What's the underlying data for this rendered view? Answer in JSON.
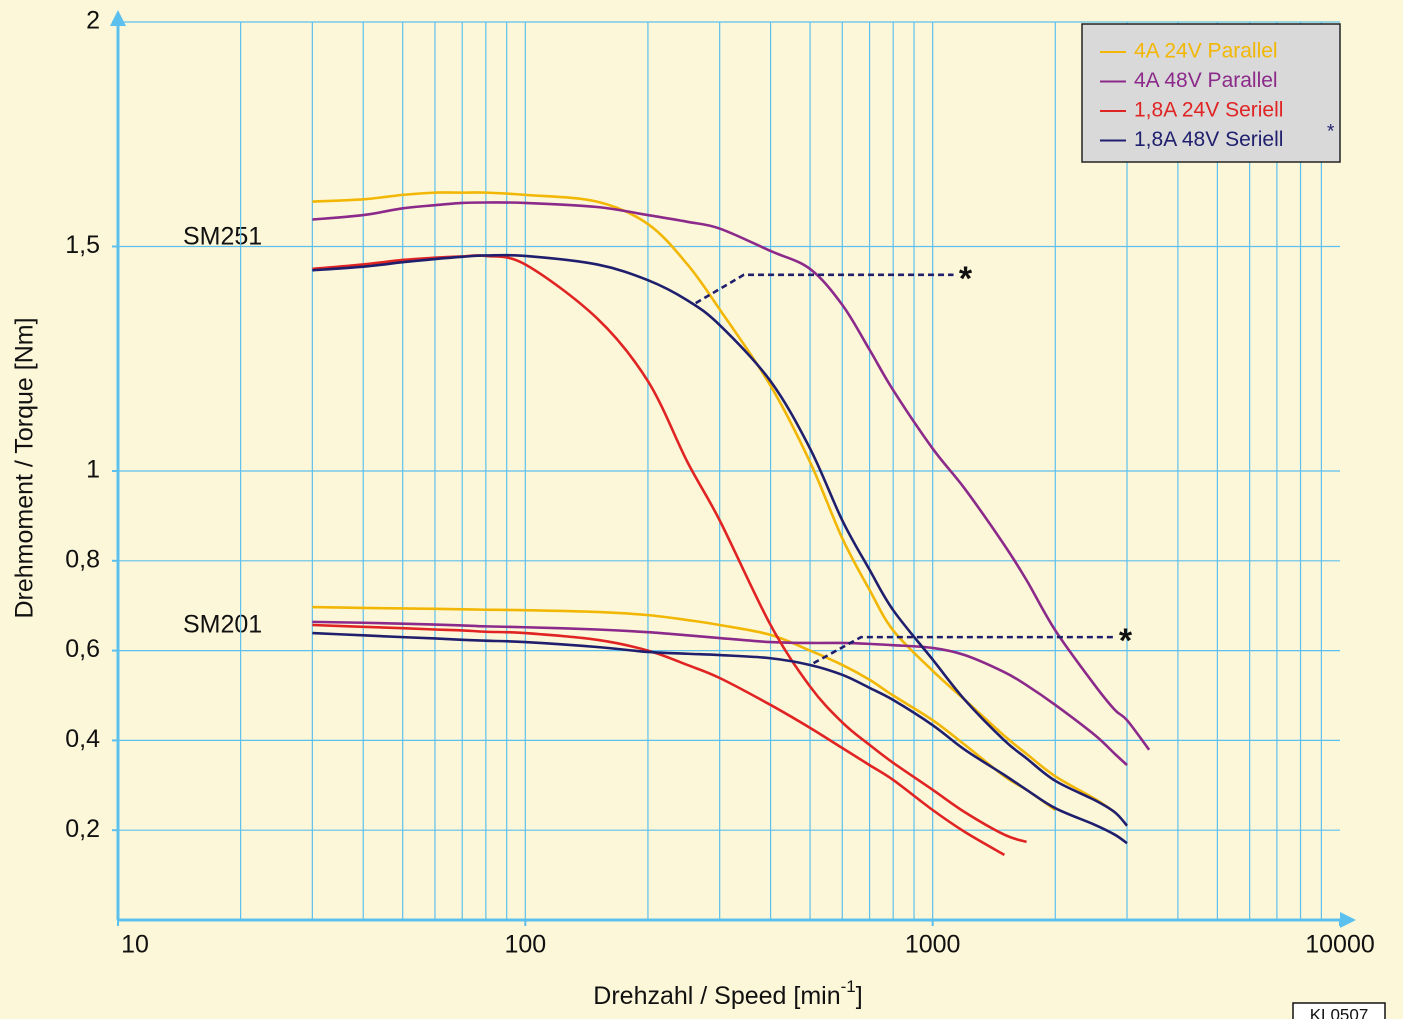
{
  "chart_data": {
    "type": "line",
    "ylabel": "Drehmoment / Torque [Nm]",
    "xlabel": "Drehzahl / Speed [min",
    "xlabel_sup": "-1",
    "xlabel_end": "]",
    "code": "KL0507",
    "xscale": "log",
    "grid": true,
    "legend_position": "upper right",
    "xlim": [
      10,
      10000
    ],
    "ylim": [
      0,
      2
    ],
    "xticks": [
      10,
      100,
      1000,
      10000
    ],
    "xgrid": [
      20,
      30,
      40,
      50,
      60,
      70,
      80,
      90,
      100,
      200,
      300,
      400,
      500,
      600,
      700,
      800,
      900,
      1000,
      2000,
      3000,
      4000,
      5000,
      6000,
      7000,
      8000,
      9000
    ],
    "yticks": [
      {
        "value": 0.2,
        "label": "0,2"
      },
      {
        "value": 0.4,
        "label": "0,4"
      },
      {
        "value": 0.6,
        "label": "0,6"
      },
      {
        "value": 0.8,
        "label": "0,8"
      },
      1,
      {
        "value": 1.5,
        "label": "1,5"
      },
      2
    ],
    "motors": [
      "SM251",
      "SM201"
    ],
    "x": [
      30,
      40,
      50,
      60,
      70,
      80,
      100,
      150,
      200,
      250,
      300,
      400,
      500,
      600,
      700,
      800,
      1000,
      1200,
      1500,
      1700,
      2000,
      2500,
      2800,
      3000,
      3400
    ],
    "series": [
      {
        "name": "4A 24V Parallel",
        "color": "#f2b705",
        "values": [
          [
            1.6,
            1.605,
            1.615,
            1.62,
            1.62,
            1.62,
            1.615,
            1.6,
            1.55,
            1.46,
            1.36,
            1.19,
            1.02,
            0.85,
            0.735,
            0.645,
            0.555,
            0.49,
            0.41,
            0.37,
            0.32,
            0.27,
            0.24,
            null,
            null
          ],
          [
            0.697,
            0.695,
            0.694,
            0.693,
            0.692,
            0.691,
            0.69,
            0.686,
            0.679,
            0.668,
            0.657,
            0.635,
            0.6,
            0.568,
            0.535,
            0.5,
            0.445,
            0.39,
            0.32,
            0.29,
            0.245,
            null,
            null,
            null,
            null
          ]
        ]
      },
      {
        "name": "4A 48V Parallel",
        "color": "#8b2a8a",
        "values": [
          [
            1.56,
            1.57,
            1.585,
            1.592,
            1.597,
            1.598,
            1.597,
            1.588,
            1.57,
            1.555,
            1.54,
            1.49,
            1.45,
            1.37,
            1.27,
            1.18,
            1.05,
            0.96,
            0.835,
            0.757,
            0.645,
            0.523,
            0.468,
            0.445,
            0.379
          ],
          [
            0.664,
            0.662,
            0.66,
            0.658,
            0.656,
            0.654,
            0.652,
            0.647,
            0.641,
            0.634,
            0.628,
            0.619,
            0.617,
            0.617,
            0.615,
            0.612,
            0.606,
            0.59,
            0.552,
            0.523,
            0.479,
            0.412,
            0.37,
            0.345,
            null
          ]
        ]
      },
      {
        "name": "1,8A 24V Seriell",
        "color": "#e02424",
        "values": [
          [
            1.45,
            1.46,
            1.47,
            1.475,
            1.478,
            1.479,
            1.46,
            1.34,
            1.2,
            1.02,
            0.89,
            0.657,
            0.52,
            0.44,
            0.39,
            0.35,
            0.29,
            0.24,
            0.19,
            0.174,
            null,
            null,
            null,
            null,
            null
          ],
          [
            0.657,
            0.653,
            0.65,
            0.647,
            0.645,
            0.642,
            0.639,
            0.624,
            0.6,
            0.568,
            0.539,
            0.479,
            0.428,
            0.383,
            0.345,
            0.312,
            0.245,
            0.196,
            0.145,
            null,
            null,
            null,
            null,
            null,
            null
          ]
        ]
      },
      {
        "name": "1,8A 48V Seriell",
        "name_suffix": "*",
        "color": "#1f1f6e",
        "values": [
          [
            1.447,
            1.455,
            1.465,
            1.472,
            1.477,
            1.48,
            1.479,
            1.46,
            1.425,
            1.38,
            1.325,
            1.2,
            1.05,
            0.89,
            0.78,
            0.69,
            0.58,
            0.49,
            0.4,
            0.36,
            0.31,
            0.267,
            0.24,
            0.21,
            null
          ],
          [
            0.639,
            0.634,
            0.63,
            0.627,
            0.624,
            0.622,
            0.619,
            0.608,
            0.597,
            0.593,
            0.59,
            0.583,
            0.568,
            0.546,
            0.517,
            0.49,
            0.434,
            0.379,
            0.323,
            0.29,
            0.249,
            0.212,
            0.19,
            0.171,
            null
          ]
        ]
      }
    ],
    "annotations": [
      {
        "text": "*",
        "color": "#1f1f6e",
        "x": [
          262,
          344,
          1125
        ],
        "y": [
          1.374,
          1.437,
          1.437
        ]
      },
      {
        "text": "*",
        "color": "#1f1f6e",
        "x": [
          510,
          667,
          2780
        ],
        "y": [
          0.572,
          0.63,
          0.63
        ]
      }
    ]
  }
}
